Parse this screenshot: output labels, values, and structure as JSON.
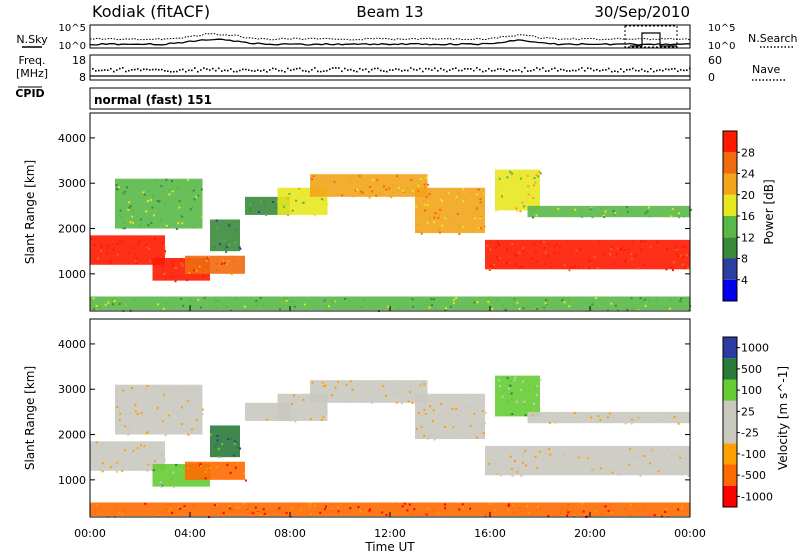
{
  "header": {
    "station": "Kodiak (fitACF)",
    "beam": "Beam 13",
    "date": "30/Sep/2010"
  },
  "summary_panels": {
    "nsky_label": "N.Sky",
    "nsearch_label": "N.Search",
    "noise_ticks_left": [
      "10^5",
      "10^0"
    ],
    "noise_ticks_right": [
      "10^5",
      "10^0"
    ],
    "freq_label": "Freq.",
    "freq_unit": "[MHz]",
    "freq_ticks": [
      "18",
      "8"
    ],
    "nave_label": "Nave",
    "nave_ticks": [
      "60",
      "0"
    ],
    "cpid_label": "CPID",
    "cpid_value": "normal (fast) 151"
  },
  "colors": {
    "power": [
      "#0000ee",
      "#2c3fa0",
      "#3b8a3c",
      "#59b848",
      "#e8e820",
      "#f2a41a",
      "#f06a10",
      "#ff1a00"
    ],
    "velocity": [
      "#ff0000",
      "#ff6a00",
      "#ffa000",
      "#c9c9c0",
      "#c9c9c0",
      "#66cc33",
      "#2a7a3a",
      "#2a3ca0"
    ]
  },
  "chart_data": [
    {
      "type": "heatmap",
      "name": "power",
      "xlabel": "",
      "ylabel": "Slant Range [km]",
      "yticks": [
        "1000",
        "2000",
        "3000",
        "4000"
      ],
      "ylim": [
        180,
        4550
      ],
      "colorbar_label": "Power [dB]",
      "colorbar_ticks": [
        "4",
        "8",
        "12",
        "16",
        "20",
        "24",
        "28"
      ],
      "clim": [
        0,
        32
      ],
      "echo_regions": [
        {
          "t0": 0.0,
          "t1": 3.0,
          "r0": 1200,
          "r1": 1850,
          "level": 7
        },
        {
          "t0": 2.5,
          "t1": 4.8,
          "r0": 850,
          "r1": 1350,
          "level": 7
        },
        {
          "t0": 3.8,
          "t1": 6.2,
          "r0": 1000,
          "r1": 1400,
          "level": 6
        },
        {
          "t0": 1.0,
          "t1": 4.5,
          "r0": 2000,
          "r1": 3100,
          "level": 3
        },
        {
          "t0": 4.8,
          "t1": 6.0,
          "r0": 1500,
          "r1": 2200,
          "level": 2
        },
        {
          "t0": 6.2,
          "t1": 8.0,
          "r0": 2300,
          "r1": 2700,
          "level": 2
        },
        {
          "t0": 7.5,
          "t1": 9.5,
          "r0": 2300,
          "r1": 2900,
          "level": 4
        },
        {
          "t0": 8.8,
          "t1": 13.5,
          "r0": 2700,
          "r1": 3200,
          "level": 5
        },
        {
          "t0": 13.0,
          "t1": 15.8,
          "r0": 1900,
          "r1": 2900,
          "level": 5
        },
        {
          "t0": 15.8,
          "t1": 24.0,
          "r0": 1100,
          "r1": 1750,
          "level": 7
        },
        {
          "t0": 16.2,
          "t1": 18.0,
          "r0": 2400,
          "r1": 3300,
          "level": 4
        },
        {
          "t0": 17.5,
          "t1": 24.0,
          "r0": 2250,
          "r1": 2500,
          "level": 3
        },
        {
          "t0": 0.0,
          "t1": 24.0,
          "r0": 200,
          "r1": 500,
          "level": 3
        }
      ]
    },
    {
      "type": "heatmap",
      "name": "velocity",
      "xlabel": "Time UT",
      "ylabel": "Slant Range [km]",
      "xticks": [
        "00:00",
        "04:00",
        "08:00",
        "12:00",
        "16:00",
        "20:00",
        "00:00"
      ],
      "yticks": [
        "1000",
        "2000",
        "3000",
        "4000"
      ],
      "ylim": [
        180,
        4550
      ],
      "colorbar_label": "Velocity [m s^-1]",
      "colorbar_ticks": [
        "1000",
        "500",
        "100",
        "25",
        "-25",
        "-100",
        "-500",
        "-1000"
      ],
      "echo_regions": [
        {
          "t0": 0.0,
          "t1": 3.0,
          "r0": 1200,
          "r1": 1850,
          "level": 3
        },
        {
          "t0": 2.5,
          "t1": 4.8,
          "r0": 850,
          "r1": 1350,
          "level": 5
        },
        {
          "t0": 3.8,
          "t1": 6.2,
          "r0": 1000,
          "r1": 1400,
          "level": 1
        },
        {
          "t0": 1.0,
          "t1": 4.5,
          "r0": 2000,
          "r1": 3100,
          "level": 3
        },
        {
          "t0": 4.8,
          "t1": 6.0,
          "r0": 1500,
          "r1": 2200,
          "level": 6
        },
        {
          "t0": 6.2,
          "t1": 8.0,
          "r0": 2300,
          "r1": 2700,
          "level": 3
        },
        {
          "t0": 7.5,
          "t1": 9.5,
          "r0": 2300,
          "r1": 2900,
          "level": 3
        },
        {
          "t0": 8.8,
          "t1": 13.5,
          "r0": 2700,
          "r1": 3200,
          "level": 3
        },
        {
          "t0": 13.0,
          "t1": 15.8,
          "r0": 1900,
          "r1": 2900,
          "level": 3
        },
        {
          "t0": 15.8,
          "t1": 24.0,
          "r0": 1100,
          "r1": 1750,
          "level": 3
        },
        {
          "t0": 16.2,
          "t1": 18.0,
          "r0": 2400,
          "r1": 3300,
          "level": 5
        },
        {
          "t0": 17.5,
          "t1": 24.0,
          "r0": 2250,
          "r1": 2500,
          "level": 3
        },
        {
          "t0": 0.0,
          "t1": 24.0,
          "r0": 200,
          "r1": 500,
          "level": 1
        }
      ]
    }
  ]
}
